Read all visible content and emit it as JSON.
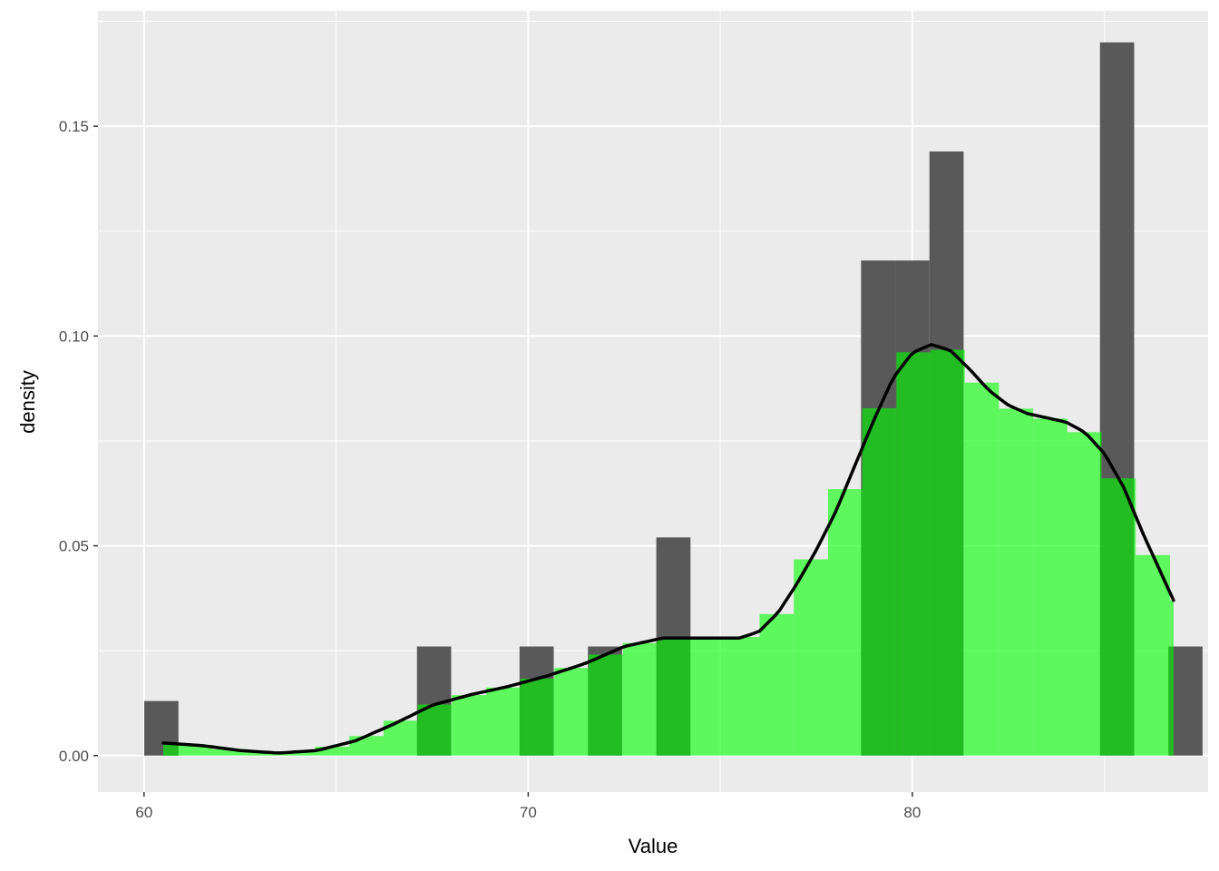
{
  "chart_data": {
    "type": "bar",
    "subtype": "histogram-with-density",
    "title": "",
    "xlabel": "Value",
    "ylabel": "density",
    "xlim": [
      58.8,
      87.7
    ],
    "ylim": [
      -0.0087,
      0.1775
    ],
    "x_ticks": [
      60,
      70,
      80
    ],
    "x_tick_labels": [
      "60",
      "70",
      "80"
    ],
    "y_ticks": [
      0.0,
      0.05,
      0.1,
      0.15
    ],
    "y_tick_labels": [
      "0.00",
      "0.05",
      "0.10",
      "0.15"
    ],
    "grid": true,
    "legend": "none",
    "bin_width": 0.89,
    "histogram": {
      "color": "#595959",
      "bins": [
        {
          "x": 60.45,
          "value": 0.013
        },
        {
          "x": 67.55,
          "value": 0.026
        },
        {
          "x": 70.22,
          "value": 0.026
        },
        {
          "x": 72.0,
          "value": 0.026
        },
        {
          "x": 73.78,
          "value": 0.052
        },
        {
          "x": 79.11,
          "value": 0.118
        },
        {
          "x": 80.0,
          "value": 0.118
        },
        {
          "x": 80.89,
          "value": 0.144
        },
        {
          "x": 85.33,
          "value": 0.17
        },
        {
          "x": 87.11,
          "value": 0.026
        }
      ]
    },
    "density_fill": {
      "color": "#00ff00",
      "opacity": 0.6,
      "points": [
        {
          "x": 60.5,
          "y": 0.003
        },
        {
          "x": 61.5,
          "y": 0.0024
        },
        {
          "x": 62.5,
          "y": 0.0012
        },
        {
          "x": 63.5,
          "y": 0.0006
        },
        {
          "x": 64.5,
          "y": 0.0012
        },
        {
          "x": 65.5,
          "y": 0.0035
        },
        {
          "x": 66.5,
          "y": 0.0075
        },
        {
          "x": 67.5,
          "y": 0.012
        },
        {
          "x": 68.5,
          "y": 0.0145
        },
        {
          "x": 69.5,
          "y": 0.0165
        },
        {
          "x": 70.5,
          "y": 0.019
        },
        {
          "x": 71.5,
          "y": 0.022
        },
        {
          "x": 72.5,
          "y": 0.026
        },
        {
          "x": 73.5,
          "y": 0.028
        },
        {
          "x": 74.5,
          "y": 0.028
        },
        {
          "x": 75.5,
          "y": 0.028
        },
        {
          "x": 76.0,
          "y": 0.0295
        },
        {
          "x": 76.5,
          "y": 0.034
        },
        {
          "x": 77.0,
          "y": 0.041
        },
        {
          "x": 77.5,
          "y": 0.049
        },
        {
          "x": 78.0,
          "y": 0.058
        },
        {
          "x": 78.5,
          "y": 0.069
        },
        {
          "x": 79.0,
          "y": 0.08
        },
        {
          "x": 79.5,
          "y": 0.09
        },
        {
          "x": 80.0,
          "y": 0.096
        },
        {
          "x": 80.5,
          "y": 0.098
        },
        {
          "x": 81.0,
          "y": 0.0965
        },
        {
          "x": 81.5,
          "y": 0.092
        },
        {
          "x": 82.0,
          "y": 0.087
        },
        {
          "x": 82.5,
          "y": 0.0835
        },
        {
          "x": 83.0,
          "y": 0.0815
        },
        {
          "x": 83.5,
          "y": 0.0805
        },
        {
          "x": 84.0,
          "y": 0.0795
        },
        {
          "x": 84.5,
          "y": 0.077
        },
        {
          "x": 85.0,
          "y": 0.072
        },
        {
          "x": 85.5,
          "y": 0.064
        },
        {
          "x": 86.0,
          "y": 0.053
        },
        {
          "x": 86.5,
          "y": 0.043
        },
        {
          "x": 86.8,
          "y": 0.037
        }
      ]
    },
    "density_curve": {
      "color": "#000000",
      "from": 60.5,
      "to": 86.8
    },
    "overlay_color": "#23bd23",
    "panel_background": "#ebebeb",
    "grid_color": "#ffffff"
  }
}
